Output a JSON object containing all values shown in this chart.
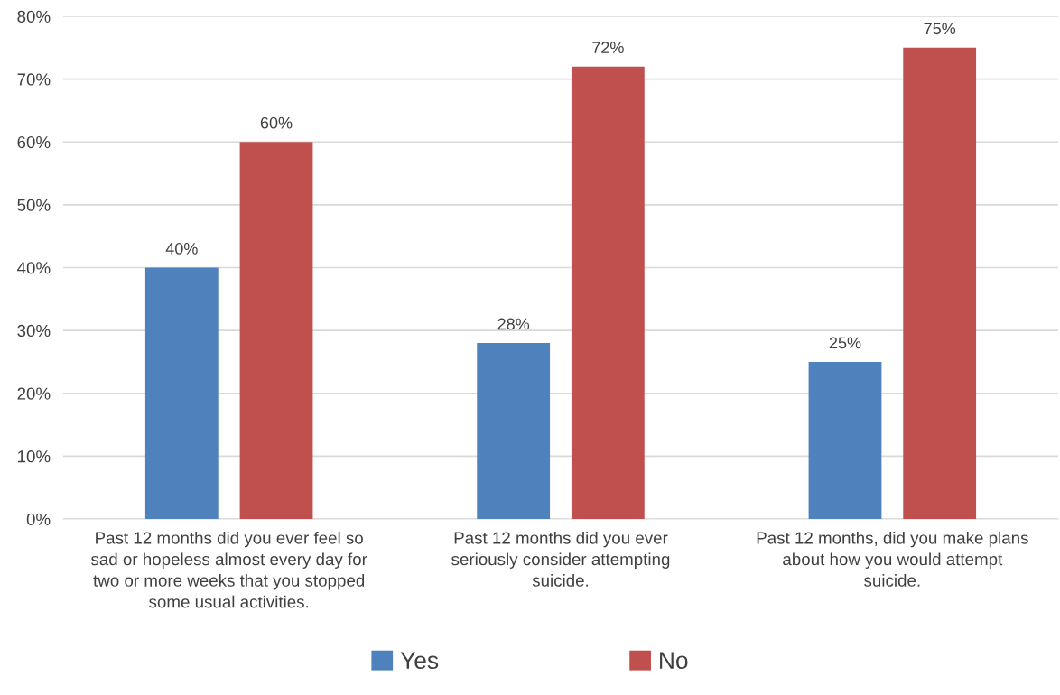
{
  "chart_data": {
    "type": "bar",
    "categories": [
      "Past 12 months did you ever feel so\nsad or hopeless almost every day for\ntwo or more weeks that you stopped\nsome usual activities.",
      "Past 12 months did you ever\nseriously consider attempting\nsuicide.",
      "Past 12 months, did you make plans\nabout how you would attempt\nsuicide."
    ],
    "series": [
      {
        "name": "Yes",
        "color": "#4f81bd",
        "values": [
          40,
          28,
          25
        ],
        "value_labels": [
          "40%",
          "28%",
          "25%"
        ]
      },
      {
        "name": "No",
        "color": "#c0504d",
        "values": [
          60,
          72,
          75
        ],
        "value_labels": [
          "60%",
          "72%",
          "75%"
        ]
      }
    ],
    "ylim": [
      0,
      80
    ],
    "yticks": [
      {
        "value": 0,
        "label": "0%"
      },
      {
        "value": 10,
        "label": "10%"
      },
      {
        "value": 20,
        "label": "20%"
      },
      {
        "value": 30,
        "label": "30%"
      },
      {
        "value": 40,
        "label": "40%"
      },
      {
        "value": 50,
        "label": "50%"
      },
      {
        "value": 60,
        "label": "60%"
      },
      {
        "value": 70,
        "label": "70%"
      },
      {
        "value": 80,
        "label": "80%"
      }
    ],
    "grid": "y",
    "legend": "bottom"
  }
}
